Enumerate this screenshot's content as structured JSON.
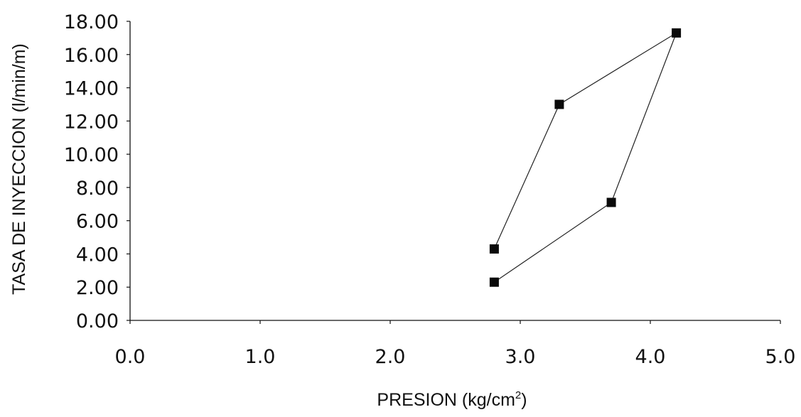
{
  "chart_data": {
    "type": "scatter",
    "xlabel": "PRESION (kg/cm",
    "xlabel_superscript": "2",
    "xlabel_suffix": ")",
    "ylabel": "TASA DE INYECCION (l/min/m)",
    "xlim": [
      0,
      5
    ],
    "ylim": [
      0,
      18
    ],
    "x_ticks": [
      "0.0",
      "1.0",
      "2.0",
      "3.0",
      "4.0",
      "5.0"
    ],
    "y_ticks": [
      "0.00",
      "2.00",
      "4.00",
      "6.00",
      "8.00",
      "10.00",
      "12.00",
      "14.00",
      "16.00",
      "18.00"
    ],
    "grid": false,
    "legend": false,
    "series": [
      {
        "marker": "square",
        "line": "solid",
        "points": [
          {
            "x": 2.8,
            "y": 2.3
          },
          {
            "x": 3.7,
            "y": 7.1
          },
          {
            "x": 4.2,
            "y": 17.3
          },
          {
            "x": 3.3,
            "y": 13.0
          },
          {
            "x": 2.8,
            "y": 4.3
          }
        ]
      }
    ]
  },
  "colors": {
    "background": "#ffffff",
    "ink": "#111111",
    "marker": "#0a0a0a"
  }
}
